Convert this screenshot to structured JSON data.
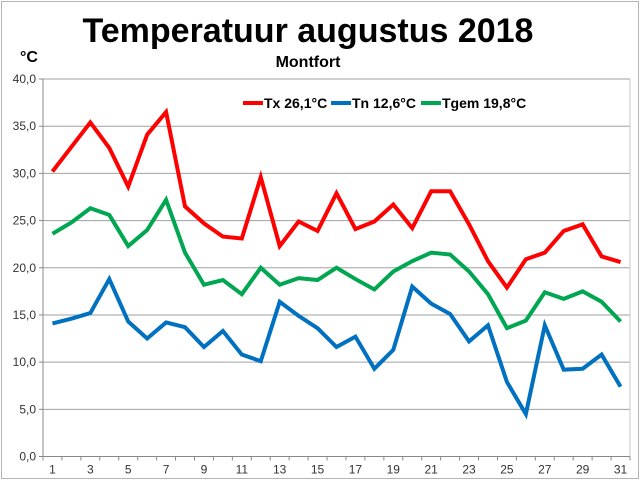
{
  "chart_data": {
    "type": "line",
    "title": "Temperatuur augustus 2018",
    "subtitle": "Montfort",
    "ylabel": "°C",
    "xlabel": "",
    "ylim": [
      0,
      40
    ],
    "yticks": [
      "0,0",
      "5,0",
      "10,0",
      "15,0",
      "20,0",
      "25,0",
      "30,0",
      "35,0",
      "40,0"
    ],
    "x": [
      1,
      2,
      3,
      4,
      5,
      6,
      7,
      8,
      9,
      10,
      11,
      12,
      13,
      14,
      15,
      16,
      17,
      18,
      19,
      20,
      21,
      22,
      23,
      24,
      25,
      26,
      27,
      28,
      29,
      30,
      31
    ],
    "xtick_labels": [
      "1",
      "3",
      "5",
      "7",
      "9",
      "11",
      "13",
      "15",
      "17",
      "19",
      "21",
      "23",
      "25",
      "27",
      "29",
      "31"
    ],
    "grid": true,
    "legend_position": "top-right",
    "series": [
      {
        "name": "Tx 26,1°C",
        "color": "#ff0000",
        "values": [
          30.2,
          32.8,
          35.4,
          32.7,
          28.6,
          34.1,
          36.5,
          26.5,
          24.7,
          23.3,
          23.1,
          29.6,
          22.3,
          24.9,
          23.9,
          27.9,
          24.1,
          24.9,
          26.7,
          24.2,
          28.1,
          28.1,
          24.6,
          20.7,
          17.9,
          20.9,
          21.6,
          23.9,
          24.6,
          21.2,
          20.6
        ]
      },
      {
        "name": "Tn 12,6°C",
        "color": "#0070c0",
        "values": [
          14.1,
          14.6,
          15.2,
          18.8,
          14.3,
          12.5,
          14.2,
          13.7,
          11.6,
          13.3,
          10.8,
          10.1,
          16.4,
          14.9,
          13.6,
          11.6,
          12.7,
          9.3,
          11.3,
          18.0,
          16.2,
          15.1,
          12.2,
          13.9,
          7.9,
          4.5,
          13.9,
          9.2,
          9.3,
          10.8,
          7.4
        ]
      },
      {
        "name": "Tgem 19,8°C",
        "color": "#00a650",
        "values": [
          23.6,
          24.8,
          26.3,
          25.6,
          22.3,
          24.0,
          27.2,
          21.6,
          18.2,
          18.7,
          17.2,
          20.0,
          18.2,
          18.9,
          18.7,
          20.0,
          18.8,
          17.7,
          19.6,
          20.7,
          21.6,
          21.4,
          19.6,
          17.2,
          13.6,
          14.4,
          17.4,
          16.7,
          17.5,
          16.4,
          14.3
        ]
      }
    ]
  }
}
